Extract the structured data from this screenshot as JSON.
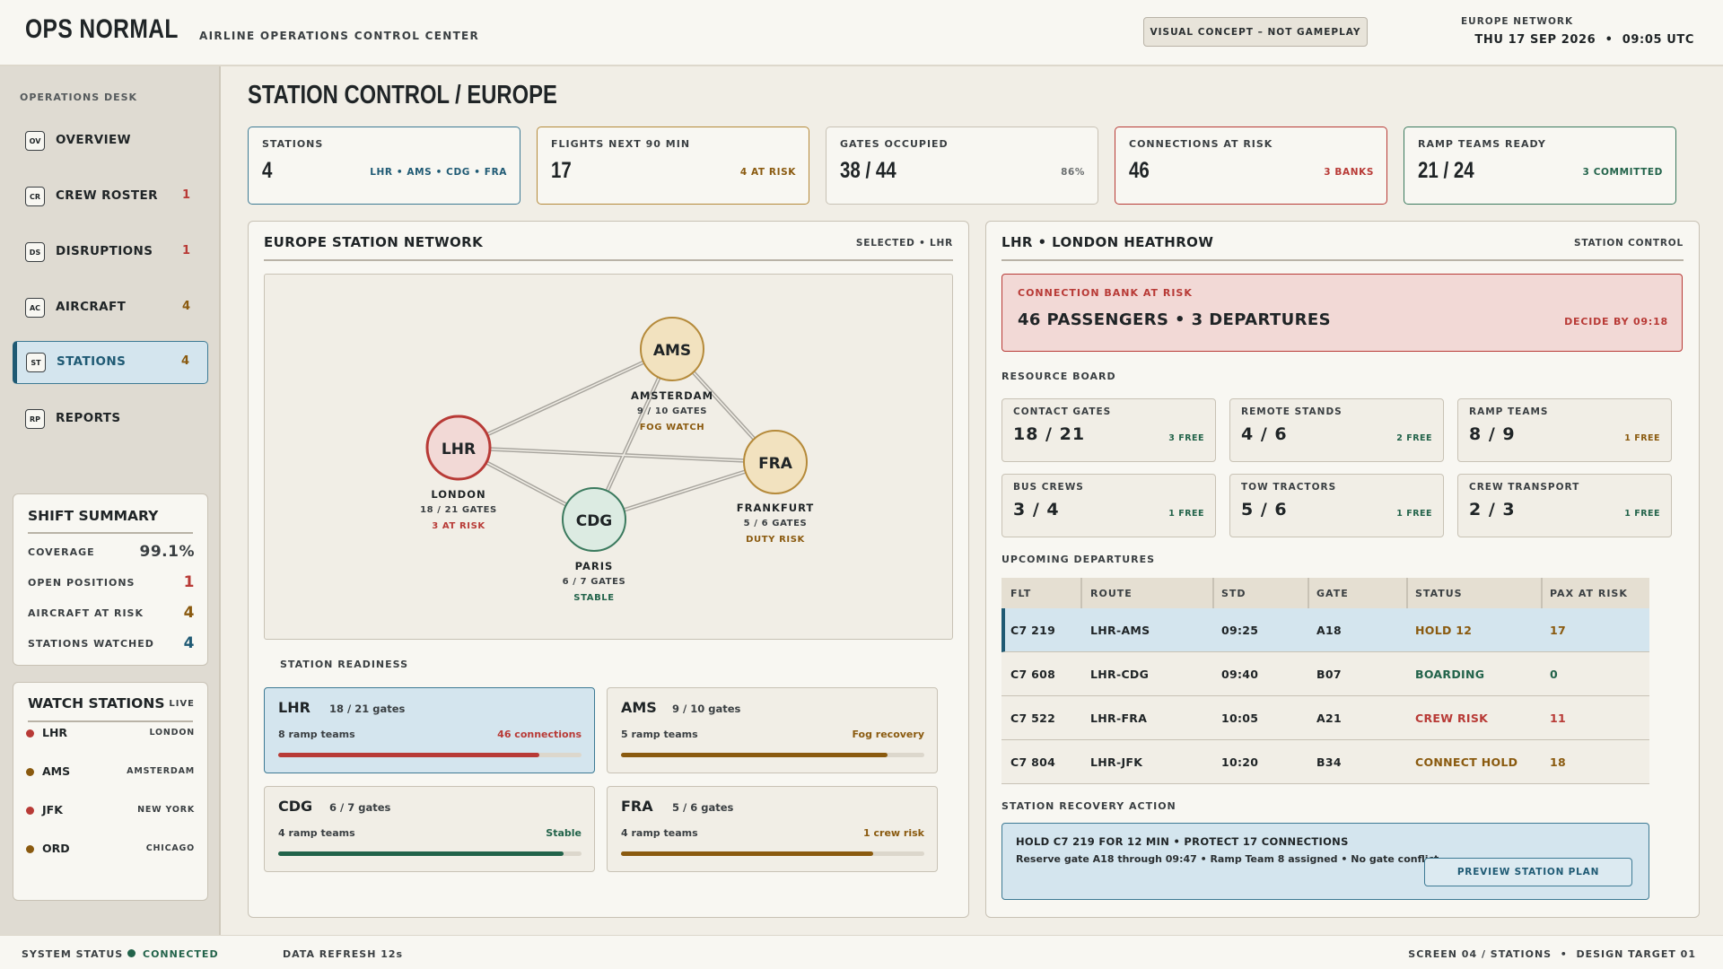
{
  "header": {
    "logo": "OPS NORMAL",
    "subtitle": "AIRLINE OPERATIONS CONTROL CENTER",
    "concept_badge": "VISUAL CONCEPT – NOT GAMEPLAY",
    "network_label": "EUROPE NETWORK",
    "datetime": "THU 17 SEP 2026  •  09:05 UTC"
  },
  "sidebar": {
    "section_label": "OPERATIONS DESK",
    "items": [
      {
        "icon": "OV",
        "label": "OVERVIEW",
        "count": ""
      },
      {
        "icon": "CR",
        "label": "CREW ROSTER",
        "count": "1"
      },
      {
        "icon": "DS",
        "label": "DISRUPTIONS",
        "count": "1"
      },
      {
        "icon": "AC",
        "label": "AIRCRAFT",
        "count": "4"
      },
      {
        "icon": "ST",
        "label": "STATIONS",
        "count": "4"
      },
      {
        "icon": "RP",
        "label": "REPORTS",
        "count": ""
      }
    ],
    "active_item": "STATIONS",
    "shift_summary": {
      "title": "SHIFT SUMMARY",
      "rows": [
        {
          "label": "COVERAGE",
          "value": "99.1%"
        },
        {
          "label": "OPEN POSITIONS",
          "value": "1"
        },
        {
          "label": "AIRCRAFT AT RISK",
          "value": "4"
        },
        {
          "label": "STATIONS WATCHED",
          "value": "4"
        }
      ]
    },
    "watch_stations": {
      "title": "WATCH STATIONS",
      "tag": "LIVE",
      "rows": [
        {
          "code": "LHR",
          "city": "LONDON",
          "color": "#b83a36"
        },
        {
          "code": "AMS",
          "city": "AMSTERDAM",
          "color": "#8a5a0f"
        },
        {
          "code": "JFK",
          "city": "NEW YORK",
          "color": "#b83a36"
        },
        {
          "code": "ORD",
          "city": "CHICAGO",
          "color": "#8a5a0f"
        }
      ]
    }
  },
  "main": {
    "title": "STATION CONTROL / EUROPE",
    "kpis": [
      {
        "label": "STATIONS",
        "value": "4",
        "sub": "LHR • AMS • CDG • FRA"
      },
      {
        "label": "FLIGHTS NEXT 90 MIN",
        "value": "17",
        "sub": "4 AT RISK"
      },
      {
        "label": "GATES OCCUPIED",
        "value": "38 / 44",
        "sub": "86%"
      },
      {
        "label": "CONNECTIONS AT RISK",
        "value": "46",
        "sub": "3 BANKS"
      },
      {
        "label": "RAMP TEAMS READY",
        "value": "21 / 24",
        "sub": "3 COMMITTED"
      }
    ],
    "network": {
      "title": "EUROPE STATION NETWORK",
      "tag": "SELECTED • LHR",
      "stations": [
        {
          "code": "LHR",
          "name": "LONDON",
          "gates": "18 / 21 GATES",
          "status": "3 AT RISK"
        },
        {
          "code": "AMS",
          "name": "AMSTERDAM",
          "gates": "9 / 10 GATES",
          "status": "FOG WATCH"
        },
        {
          "code": "FRA",
          "name": "FRANKFURT",
          "gates": "5 / 6 GATES",
          "status": "DUTY RISK"
        },
        {
          "code": "CDG",
          "name": "PARIS",
          "gates": "6 / 7 GATES",
          "status": "STABLE"
        }
      ]
    },
    "readiness": {
      "label": "STATION READINESS",
      "cards": [
        {
          "code": "LHR",
          "gates": "18 / 21 gates",
          "teams": "8 ramp teams",
          "note": "46 connections",
          "level": 0.86
        },
        {
          "code": "AMS",
          "gates": "9 / 10 gates",
          "teams": "5 ramp teams",
          "note": "Fog recovery",
          "level": 0.88
        },
        {
          "code": "CDG",
          "gates": "6 / 7 gates",
          "teams": "4 ramp teams",
          "note": "Stable",
          "level": 0.94
        },
        {
          "code": "FRA",
          "gates": "5 / 6 gates",
          "teams": "4 ramp teams",
          "note": "1 crew risk",
          "level": 0.83
        }
      ]
    }
  },
  "station": {
    "title": "LHR • LONDON HEATHROW",
    "tag": "STATION CONTROL",
    "alert": {
      "label": "CONNECTION BANK AT RISK",
      "value": "46 PASSENGERS • 3 DEPARTURES",
      "deadline": "DECIDE BY 09:18"
    },
    "resource_label": "RESOURCE BOARD",
    "resources": [
      {
        "label": "CONTACT GATES",
        "value": "18 / 21",
        "free": "3 FREE"
      },
      {
        "label": "REMOTE STANDS",
        "value": "4 / 6",
        "free": "2 FREE"
      },
      {
        "label": "RAMP TEAMS",
        "value": "8 / 9",
        "free": "1 FREE"
      },
      {
        "label": "BUS CREWS",
        "value": "3 / 4",
        "free": "1 FREE"
      },
      {
        "label": "TOW TRACTORS",
        "value": "5 / 6",
        "free": "1 FREE"
      },
      {
        "label": "CREW TRANSPORT",
        "value": "2 / 3",
        "free": "1 FREE"
      }
    ],
    "departures_label": "UPCOMING DEPARTURES",
    "columns": [
      "FLT",
      "ROUTE",
      "STD",
      "GATE",
      "STATUS",
      "PAX AT RISK"
    ],
    "rows": [
      [
        "C7 219",
        "LHR-AMS",
        "09:25",
        "A18",
        "HOLD 12",
        "17"
      ],
      [
        "C7 608",
        "LHR-CDG",
        "09:40",
        "B07",
        "BOARDING",
        "0"
      ],
      [
        "C7 522",
        "LHR-FRA",
        "10:05",
        "A21",
        "CREW RISK",
        "11"
      ],
      [
        "C7 804",
        "LHR-JFK",
        "10:20",
        "B34",
        "CONNECT HOLD",
        "18"
      ]
    ],
    "action_label": "STATION RECOVERY ACTION",
    "action": {
      "headline": "HOLD C7 219 FOR 12 MIN • PROTECT 17 CONNECTIONS",
      "detail": "Reserve gate A18 through 09:47 • Ramp Team 8 assigned • No gate conflict",
      "button": "PREVIEW STATION PLAN"
    }
  },
  "footer": {
    "status_label": "SYSTEM STATUS",
    "status_value": "CONNECTED",
    "refresh": "DATA REFRESH 12s",
    "screen": "SCREEN 04 / STATIONS  •  DESIGN TARGET 01"
  },
  "colors": {
    "red": "#b83a36",
    "amber": "#8a5a0f",
    "green": "#22634a",
    "blue": "#1f5a74"
  }
}
